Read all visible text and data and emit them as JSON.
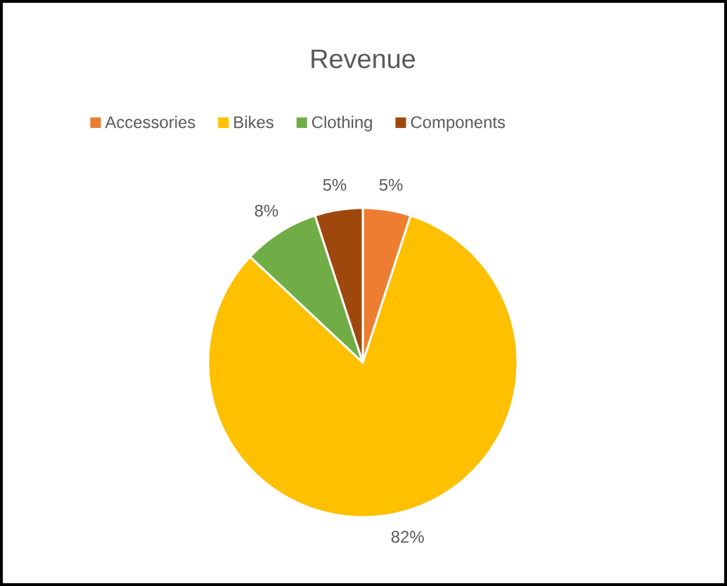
{
  "chart_data": {
    "type": "pie",
    "title": "Revenue",
    "categories": [
      "Accessories",
      "Bikes",
      "Clothing",
      "Components"
    ],
    "values": [
      5,
      82,
      8,
      5
    ],
    "colors": [
      "#ed7d31",
      "#ffc000",
      "#70ad47",
      "#9e480e"
    ],
    "value_labels": [
      "5%",
      "82%",
      "8%",
      "5%"
    ],
    "legend": "top"
  }
}
